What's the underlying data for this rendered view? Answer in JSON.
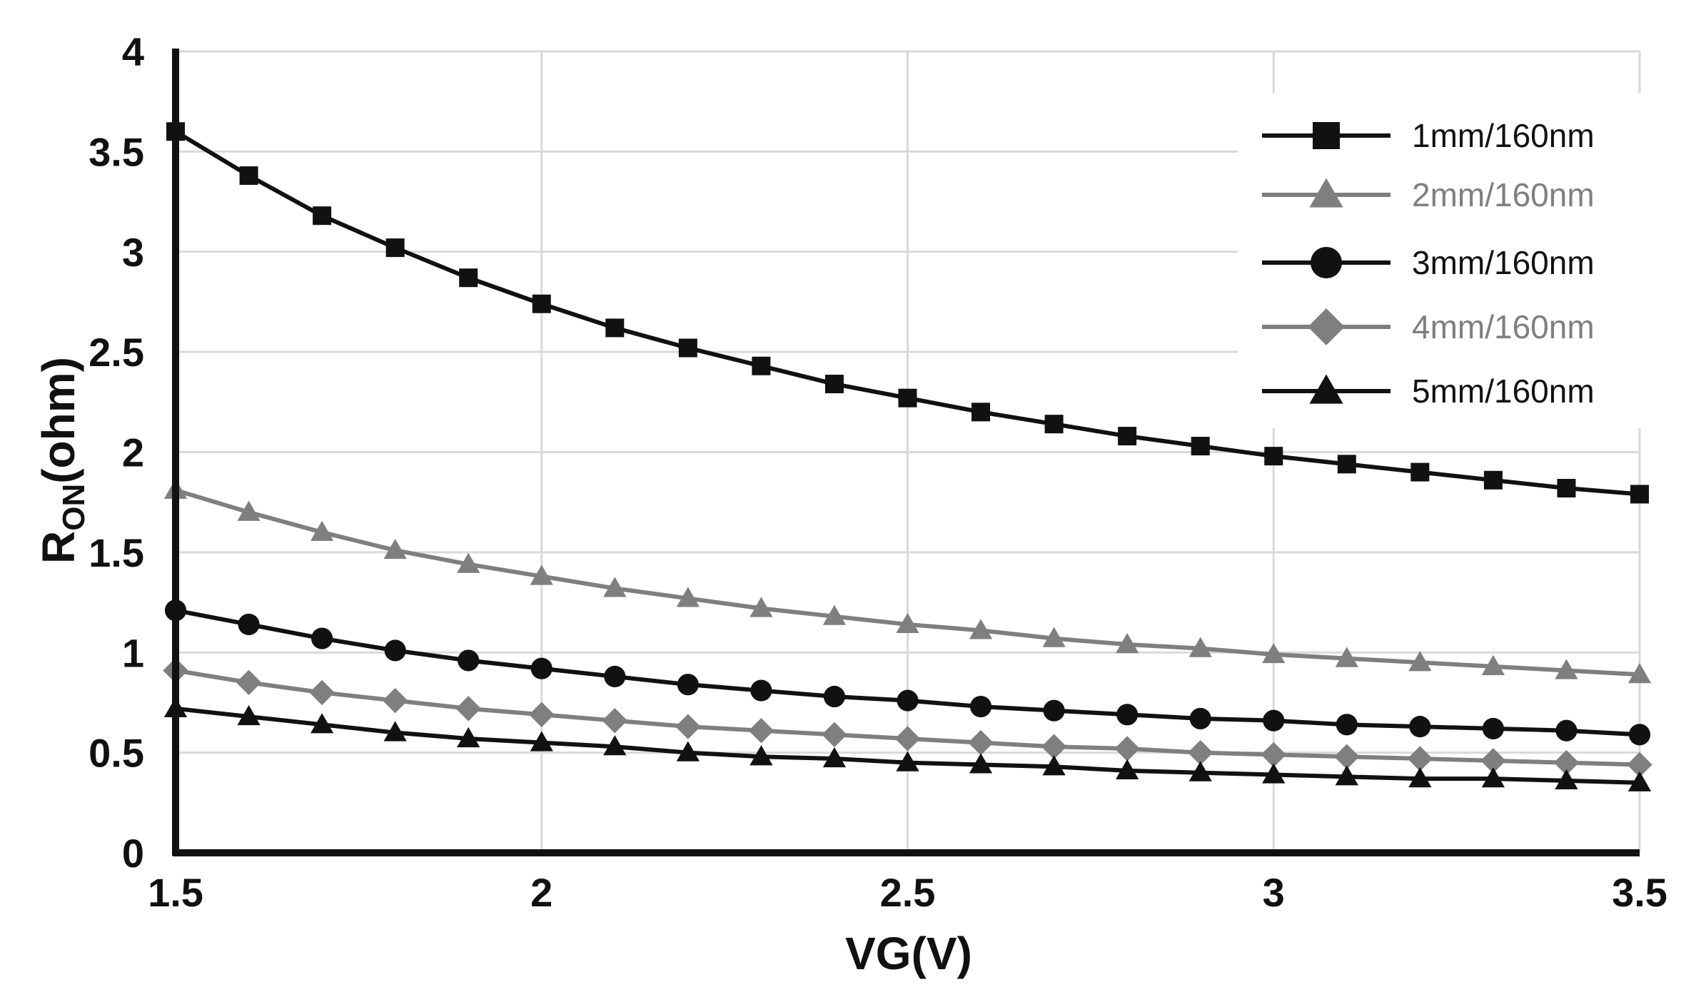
{
  "chart_data": {
    "type": "line",
    "title": "",
    "xlabel": "VG(V)",
    "ylabel": {
      "main": "R",
      "sub": "ON",
      "suffix": "(ohm)"
    },
    "xlim": [
      1.5,
      3.5
    ],
    "ylim": [
      0,
      4
    ],
    "xticks": [
      1.5,
      2,
      2.5,
      3,
      3.5
    ],
    "xtick_labels": [
      "1.5",
      "2",
      "2.5",
      "3",
      "3.5"
    ],
    "yticks": [
      0,
      0.5,
      1,
      1.5,
      2,
      2.5,
      3,
      3.5,
      4
    ],
    "ytick_labels": [
      "0",
      "0.5",
      "1",
      "1.5",
      "2",
      "2.5",
      "3",
      "3.5",
      "4"
    ],
    "grid": true,
    "legend_position": "top-right",
    "x": [
      1.5,
      1.6,
      1.7,
      1.8,
      1.9,
      2.0,
      2.1,
      2.2,
      2.3,
      2.4,
      2.5,
      2.6,
      2.7,
      2.8,
      2.9,
      3.0,
      3.1,
      3.2,
      3.3,
      3.4,
      3.5
    ],
    "series": [
      {
        "name": "1mm/160nm",
        "marker": "square",
        "color": "#111111",
        "values": [
          3.6,
          3.38,
          3.18,
          3.02,
          2.87,
          2.74,
          2.62,
          2.52,
          2.43,
          2.34,
          2.27,
          2.2,
          2.14,
          2.08,
          2.03,
          1.98,
          1.94,
          1.9,
          1.86,
          1.82,
          1.79
        ]
      },
      {
        "name": "2mm/160nm",
        "marker": "triangle",
        "color": "#7f7f7f",
        "values": [
          1.81,
          1.7,
          1.6,
          1.51,
          1.44,
          1.38,
          1.32,
          1.27,
          1.22,
          1.18,
          1.14,
          1.11,
          1.07,
          1.04,
          1.02,
          0.99,
          0.97,
          0.95,
          0.93,
          0.91,
          0.89
        ]
      },
      {
        "name": "3mm/160nm",
        "marker": "circle",
        "color": "#111111",
        "values": [
          1.21,
          1.14,
          1.07,
          1.01,
          0.96,
          0.92,
          0.88,
          0.84,
          0.81,
          0.78,
          0.76,
          0.73,
          0.71,
          0.69,
          0.67,
          0.66,
          0.64,
          0.63,
          0.62,
          0.61,
          0.59
        ]
      },
      {
        "name": "4mm/160nm",
        "marker": "diamond",
        "color": "#7f7f7f",
        "values": [
          0.91,
          0.85,
          0.8,
          0.76,
          0.72,
          0.69,
          0.66,
          0.63,
          0.61,
          0.59,
          0.57,
          0.55,
          0.53,
          0.52,
          0.5,
          0.49,
          0.48,
          0.47,
          0.46,
          0.45,
          0.44
        ]
      },
      {
        "name": "5mm/160nm",
        "marker": "triangle",
        "color": "#111111",
        "values": [
          0.72,
          0.68,
          0.64,
          0.6,
          0.57,
          0.55,
          0.53,
          0.5,
          0.48,
          0.47,
          0.45,
          0.44,
          0.43,
          0.41,
          0.4,
          0.39,
          0.38,
          0.37,
          0.37,
          0.36,
          0.35
        ]
      }
    ]
  },
  "colors": {
    "axis": "#111111",
    "grid": "#d9d9d9",
    "black_series": "#111111",
    "gray_series": "#7f7f7f"
  }
}
